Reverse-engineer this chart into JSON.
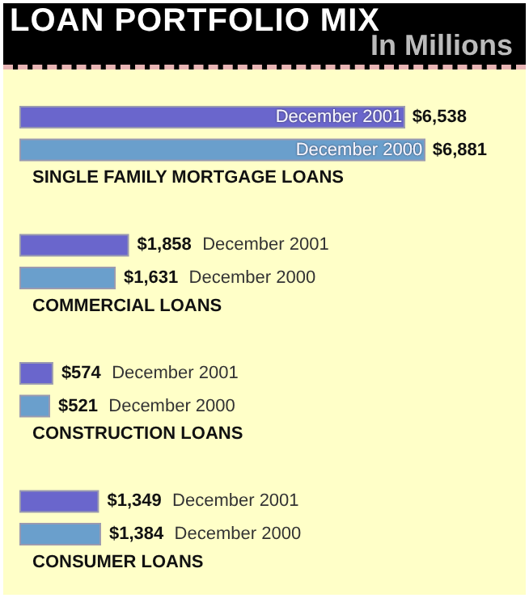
{
  "chart_data": {
    "type": "bar",
    "orientation": "horizontal",
    "title": "LOAN PORTFOLIO MIX",
    "subtitle": "In Millions",
    "categories": [
      "SINGLE FAMILY MORTGAGE LOANS",
      "COMMERCIAL LOANS",
      "CONSTRUCTION LOANS",
      "CONSUMER LOANS"
    ],
    "series": [
      {
        "name": "December 2001",
        "color": "#6a66cc",
        "values": [
          6538,
          1858,
          574,
          1349
        ],
        "value_labels": [
          "$6,538",
          "$1,858",
          "$574",
          "$1,349"
        ]
      },
      {
        "name": "December 2000",
        "color": "#6a9fcc",
        "values": [
          6881,
          1631,
          521,
          1384
        ],
        "value_labels": [
          "$6,881",
          "$1,631",
          "$521",
          "$1,384"
        ]
      }
    ],
    "legend": false
  }
}
